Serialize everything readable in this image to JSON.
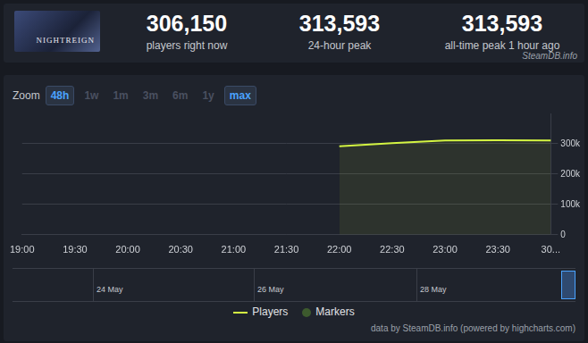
{
  "header": {
    "thumbnail_text": "NIGHTREIGN",
    "stats": [
      {
        "value": "306,150",
        "label": "players right now"
      },
      {
        "value": "313,593",
        "label": "24-hour peak"
      },
      {
        "value": "313,593",
        "label": "all-time peak 1 hour ago"
      }
    ],
    "source": "SteamDB.info"
  },
  "zoom": {
    "label": "Zoom",
    "buttons": [
      "48h",
      "1w",
      "1m",
      "3m",
      "6m",
      "1y",
      "max"
    ],
    "active": [
      "48h",
      "max"
    ]
  },
  "chart_data": {
    "type": "line",
    "categories": [
      "19:00",
      "19:30",
      "20:00",
      "20:30",
      "21:00",
      "21:30",
      "22:00",
      "22:30",
      "23:00",
      "23:30",
      "30..."
    ],
    "series": [
      {
        "name": "Players",
        "color": "#d4f542",
        "values": [
          null,
          null,
          null,
          null,
          null,
          null,
          292000,
          302000,
          311000,
          311500,
          311000
        ]
      }
    ],
    "ylim": [
      0,
      400000
    ],
    "yticks": [
      0,
      {
        "value": 100000,
        "label": "100k"
      },
      {
        "value": 200000,
        "label": "200k"
      },
      {
        "value": 300000,
        "label": "300k"
      }
    ],
    "grid": true,
    "legend": "bottom"
  },
  "navigator": {
    "labels": [
      "24 May",
      "26 May",
      "28 May"
    ]
  },
  "extra_legend": {
    "name": "Markers",
    "color": "#3d5a2e"
  },
  "credit": "data by SteamDB.info (powered by highcharts.com)"
}
